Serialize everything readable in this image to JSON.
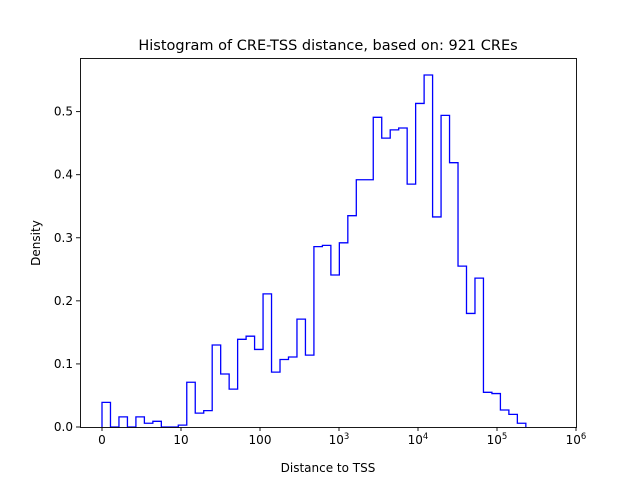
{
  "chart_data": {
    "type": "bar",
    "histtype": "step",
    "title": "Histogram of CRE-TSS distance, based on: 921 CREs",
    "xlabel": "Distance to TSS",
    "ylabel": "Density",
    "x_scale": "symlog",
    "x_ticks": [
      {
        "value": 0,
        "base": "0",
        "exp": ""
      },
      {
        "value": 1,
        "base": "10",
        "exp": ""
      },
      {
        "value": 2,
        "base": "100",
        "exp": ""
      },
      {
        "value": 3,
        "base": "10",
        "exp": "3"
      },
      {
        "value": 4,
        "base": "10",
        "exp": "4"
      },
      {
        "value": 5,
        "base": "10",
        "exp": "5"
      },
      {
        "value": 6,
        "base": "10",
        "exp": "6"
      }
    ],
    "xlim_symlog_decades": [
      -0.28,
      6
    ],
    "ylim": [
      0,
      0.585
    ],
    "y_ticks": [
      "0.0",
      "0.1",
      "0.2",
      "0.3",
      "0.4",
      "0.5"
    ],
    "bin_start_symlog": 0,
    "bin_width_symlog": 0.1073,
    "values": [
      0.039,
      0,
      0.016,
      0,
      0.016,
      0.006,
      0.009,
      0,
      0,
      0.003,
      0.071,
      0.022,
      0.026,
      0.13,
      0.084,
      0.06,
      0.139,
      0.144,
      0.123,
      0.211,
      0.087,
      0.107,
      0.111,
      0.171,
      0.114,
      0.286,
      0.288,
      0.241,
      0.292,
      0.335,
      0.392,
      0.392,
      0.491,
      0.458,
      0.471,
      0.474,
      0.385,
      0.513,
      0.558,
      0.333,
      0.494,
      0.419,
      0.255,
      0.18,
      0.236,
      0.055,
      0.053,
      0.027,
      0.02,
      0.006
    ],
    "line_color": "#0000ff",
    "grid": false
  }
}
